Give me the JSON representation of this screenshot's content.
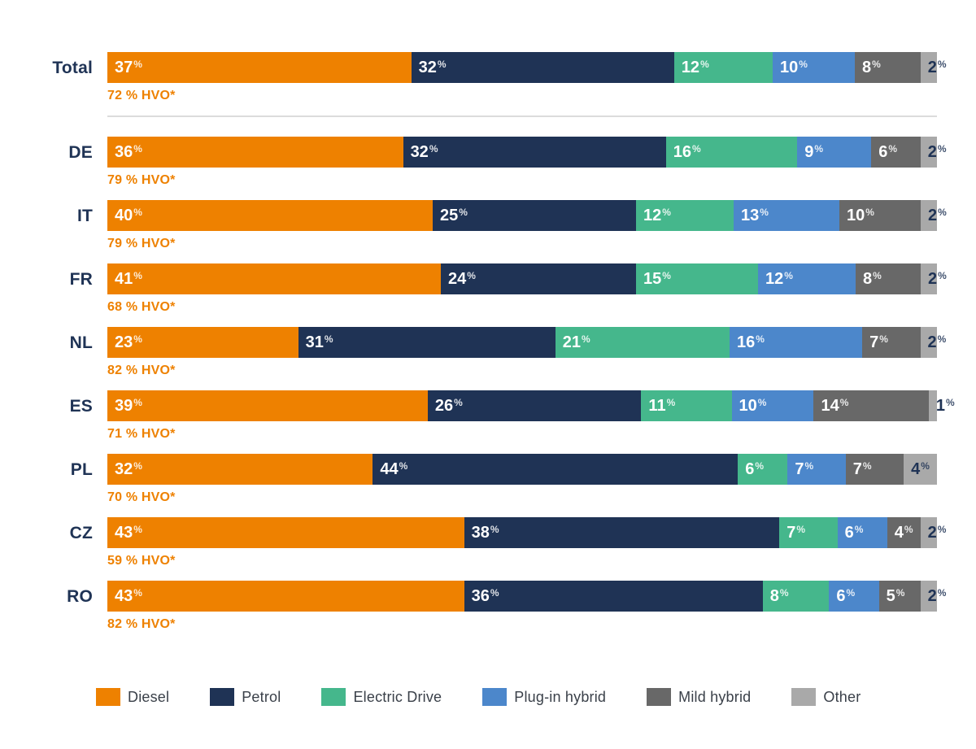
{
  "chart_data": {
    "type": "bar",
    "variant": "horizontal-stacked",
    "unit": "%",
    "series": [
      "Diesel",
      "Petrol",
      "Electric Drive",
      "Plug-in hybrid",
      "Mild hybrid",
      "Other"
    ],
    "series_colors": [
      "#EE8100",
      "#1F3355",
      "#45B78C",
      "#4C87CB",
      "#686868",
      "#A9A9A9"
    ],
    "series_label_colors": [
      "#FFFFFF",
      "#FFFFFF",
      "#FFFFFF",
      "#FFFFFF",
      "#FFFFFF",
      "#1F3355"
    ],
    "rows": [
      {
        "label": "Total",
        "values": [
          37,
          32,
          12,
          10,
          8,
          2
        ],
        "hvo_note": "72 % HVO*"
      },
      {
        "label": "DE",
        "values": [
          36,
          32,
          16,
          9,
          6,
          2
        ],
        "hvo_note": "79 % HVO*"
      },
      {
        "label": "IT",
        "values": [
          40,
          25,
          12,
          13,
          10,
          2
        ],
        "hvo_note": "79 % HVO*"
      },
      {
        "label": "FR",
        "values": [
          41,
          24,
          15,
          12,
          8,
          2
        ],
        "hvo_note": "68 % HVO*"
      },
      {
        "label": "NL",
        "values": [
          23,
          31,
          21,
          16,
          7,
          2
        ],
        "hvo_note": "82 % HVO*"
      },
      {
        "label": "ES",
        "values": [
          39,
          26,
          11,
          10,
          14,
          1
        ],
        "hvo_note": "71 % HVO*"
      },
      {
        "label": "PL",
        "values": [
          32,
          44,
          6,
          7,
          7,
          4
        ],
        "hvo_note": "70 % HVO*"
      },
      {
        "label": "CZ",
        "values": [
          43,
          38,
          7,
          6,
          4,
          2
        ],
        "hvo_note": "59 % HVO*"
      },
      {
        "label": "RO",
        "values": [
          43,
          36,
          8,
          6,
          5,
          2
        ],
        "hvo_note": "82 % HVO*"
      }
    ],
    "divider_after_row": "Total",
    "legend": [
      "Diesel",
      "Petrol",
      "Electric Drive",
      "Plug-in hybrid",
      "Mild hybrid",
      "Other"
    ],
    "colors": {
      "background": "#FFFFFF",
      "row_label_text": "#1F3355",
      "hvo_text": "#EE8100",
      "divider": "#DCDCDC",
      "legend_text": "#3A4049"
    },
    "layout": {
      "legend_position": "bottom",
      "value_labels": "inside-start",
      "axis": "none"
    }
  }
}
